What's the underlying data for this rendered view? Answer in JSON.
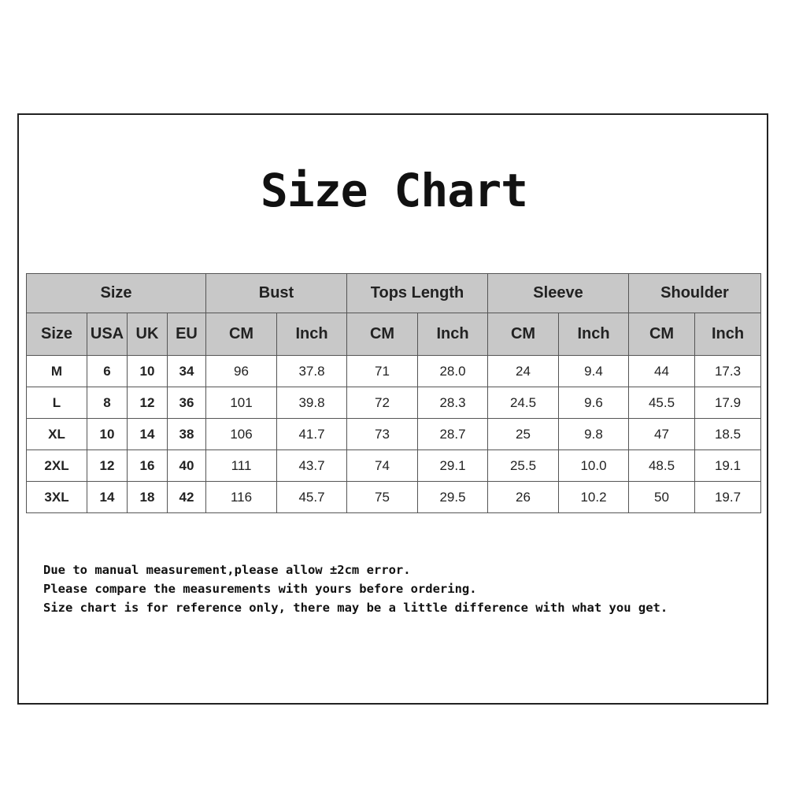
{
  "title": "Size Chart",
  "table": {
    "group_headers": [
      "Size",
      "Bust",
      "Tops Length",
      "Sleeve",
      "Shoulder"
    ],
    "sub_headers": [
      "Size",
      "USA",
      "UK",
      "EU",
      "CM",
      "Inch",
      "CM",
      "Inch",
      "CM",
      "Inch",
      "CM",
      "Inch"
    ],
    "rows": [
      [
        "M",
        "6",
        "10",
        "34",
        "96",
        "37.8",
        "71",
        "28.0",
        "24",
        "9.4",
        "44",
        "17.3"
      ],
      [
        "L",
        "8",
        "12",
        "36",
        "101",
        "39.8",
        "72",
        "28.3",
        "24.5",
        "9.6",
        "45.5",
        "17.9"
      ],
      [
        "XL",
        "10",
        "14",
        "38",
        "106",
        "41.7",
        "73",
        "28.7",
        "25",
        "9.8",
        "47",
        "18.5"
      ],
      [
        "2XL",
        "12",
        "16",
        "40",
        "111",
        "43.7",
        "74",
        "29.1",
        "25.5",
        "10.0",
        "48.5",
        "19.1"
      ],
      [
        "3XL",
        "14",
        "18",
        "42",
        "116",
        "45.7",
        "75",
        "29.5",
        "26",
        "10.2",
        "50",
        "19.7"
      ]
    ]
  },
  "notes": [
    "Due to manual measurement,please allow ±2cm error.",
    "Please compare the measurements with yours before ordering.",
    "Size chart is for reference only, there may be a little difference with what you get."
  ],
  "colors": {
    "header_bg": "#c8c8c8",
    "border": "#555555"
  }
}
